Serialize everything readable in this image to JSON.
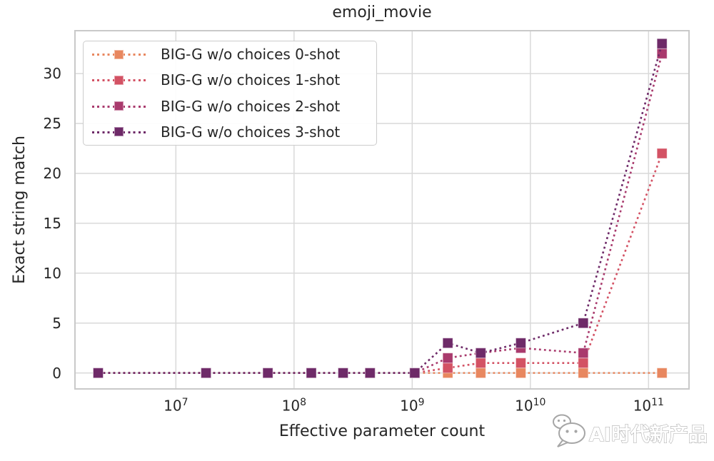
{
  "title": "emoji_movie",
  "axes": {
    "xlabel": "Effective parameter count",
    "ylabel": "Exact string match",
    "x_ticks": [
      {
        "mantissa": "10",
        "exponent": "7",
        "value": 10000000
      },
      {
        "mantissa": "10",
        "exponent": "8",
        "value": 100000000
      },
      {
        "mantissa": "10",
        "exponent": "9",
        "value": 1000000000
      },
      {
        "mantissa": "10",
        "exponent": "10",
        "value": 10000000000
      },
      {
        "mantissa": "10",
        "exponent": "11",
        "value": 100000000000
      }
    ],
    "y_ticks": [
      0,
      5,
      10,
      15,
      20,
      25,
      30
    ]
  },
  "legend": {
    "entries": [
      {
        "label": "BIG-G w/o choices 0-shot",
        "color": "#e8875f"
      },
      {
        "label": "BIG-G w/o choices 1-shot",
        "color": "#d35264"
      },
      {
        "label": "BIG-G w/o choices 2-shot",
        "color": "#a93a6d"
      },
      {
        "label": "BIG-G w/o choices 3-shot",
        "color": "#6e2a68"
      }
    ]
  },
  "watermark": {
    "text": "AI时代新产品",
    "icon": "wechat-logo"
  },
  "style": {
    "grid_color": "#d9d9d9",
    "spine_color": "#c9c9c9",
    "text_color": "#262626",
    "background": "#ffffff",
    "marker_size": 14
  },
  "chart_data": {
    "type": "line",
    "title": "emoji_movie",
    "xlabel": "Effective parameter count",
    "ylabel": "Exact string match",
    "xscale": "log",
    "xlim": [
      1400000,
      220000000000
    ],
    "ylim": [
      -1.6,
      34.3
    ],
    "grid": true,
    "legend_position": "upper left",
    "line_style": "dotted",
    "marker": "square",
    "x": [
      2200000,
      18000000,
      60000000,
      140000000,
      260000000,
      440000000,
      1050000000,
      2000000000,
      3800000000,
      8300000000,
      28000000000,
      130000000000
    ],
    "series": [
      {
        "name": "BIG-G w/o choices 0-shot",
        "color": "#e8875f",
        "values": [
          0,
          0,
          0,
          0,
          0,
          0,
          0,
          0,
          0,
          0,
          0,
          0
        ]
      },
      {
        "name": "BIG-G w/o choices 1-shot",
        "color": "#d35264",
        "values": [
          0,
          0,
          0,
          0,
          0,
          0,
          0,
          0.5,
          1,
          1,
          1,
          22
        ]
      },
      {
        "name": "BIG-G w/o choices 2-shot",
        "color": "#a93a6d",
        "values": [
          0,
          0,
          0,
          0,
          0,
          0,
          0,
          1.5,
          2,
          2.5,
          2,
          32
        ]
      },
      {
        "name": "BIG-G w/o choices 3-shot",
        "color": "#6e2a68",
        "values": [
          0,
          0,
          0,
          0,
          0,
          0,
          0,
          3,
          2,
          3,
          5,
          33
        ]
      }
    ]
  }
}
